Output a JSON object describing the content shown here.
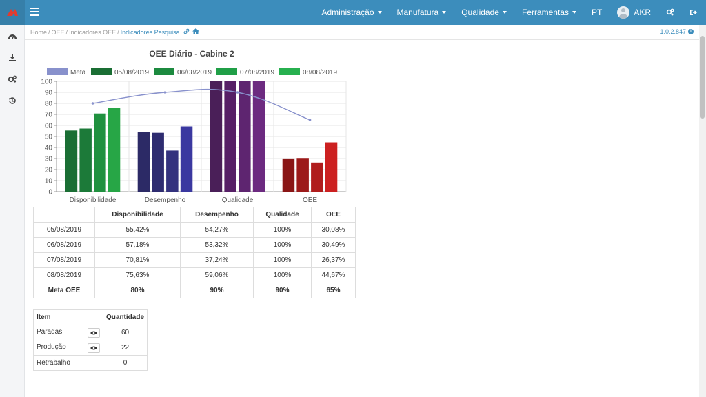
{
  "header": {
    "menu": [
      {
        "label": "Administração",
        "has_caret": true
      },
      {
        "label": "Manufatura",
        "has_caret": true
      },
      {
        "label": "Qualidade",
        "has_caret": true
      },
      {
        "label": "Ferramentas",
        "has_caret": true
      },
      {
        "label": "PT",
        "has_caret": false
      }
    ],
    "user": "AKR"
  },
  "breadcrumb": {
    "home": "Home",
    "oee": "OEE",
    "indicadores": "Indicadores OEE",
    "current": "Indicadores Pesquisa"
  },
  "version": "1.0.2.847",
  "chart_data": {
    "type": "bar",
    "title": "OEE Diário - Cabine 2",
    "categories": [
      "Disponibilidade",
      "Desempenho",
      "Qualidade",
      "OEE"
    ],
    "ylim": [
      0,
      100
    ],
    "yticks": [
      0,
      10,
      20,
      30,
      40,
      50,
      60,
      70,
      80,
      90,
      100
    ],
    "series": [
      {
        "name": "05/08/2019",
        "values": [
          55.42,
          54.27,
          100,
          30.08
        ]
      },
      {
        "name": "06/08/2019",
        "values": [
          57.18,
          53.32,
          100,
          30.49
        ]
      },
      {
        "name": "07/08/2019",
        "values": [
          70.81,
          37.24,
          100,
          26.37
        ]
      },
      {
        "name": "08/08/2019",
        "values": [
          75.63,
          59.06,
          100,
          44.67
        ]
      }
    ],
    "line": {
      "name": "Meta",
      "values": [
        80,
        90,
        90,
        65
      ],
      "color": "#8891cc"
    },
    "legend_colors": [
      "#1a6e34",
      "#1c8a3f",
      "#209f47",
      "#27b04f"
    ],
    "bar_colors": [
      [
        "#1a6e34",
        "#1c7a39",
        "#20913f",
        "#27a646"
      ],
      [
        "#2c2a66",
        "#2e2c70",
        "#34327e",
        "#3a38a0"
      ],
      [
        "#4a1f58",
        "#561f66",
        "#5e2570",
        "#6c2a80"
      ],
      [
        "#8a1616",
        "#9c1a1a",
        "#b01c1c",
        "#cc2020"
      ]
    ],
    "grid": true,
    "legend": "top"
  },
  "oee_table": {
    "headers": [
      "",
      "Disponibilidade",
      "Desempenho",
      "Qualidade",
      "OEE"
    ],
    "rows": [
      [
        "05/08/2019",
        "55,42%",
        "54,27%",
        "100%",
        "30,08%"
      ],
      [
        "06/08/2019",
        "57,18%",
        "53,32%",
        "100%",
        "30,49%"
      ],
      [
        "07/08/2019",
        "70,81%",
        "37,24%",
        "100%",
        "26,37%"
      ],
      [
        "08/08/2019",
        "75,63%",
        "59,06%",
        "100%",
        "44,67%"
      ]
    ],
    "meta_row": [
      "Meta OEE",
      "80%",
      "90%",
      "90%",
      "65%"
    ]
  },
  "item_table": {
    "headers": [
      "Item",
      "Quantidade"
    ],
    "rows": [
      {
        "item": "Paradas",
        "qty": "60",
        "has_view": true
      },
      {
        "item": "Produção",
        "qty": "22",
        "has_view": true
      },
      {
        "item": "Retrabalho",
        "qty": "0",
        "has_view": false
      }
    ]
  },
  "colors": {
    "topbar": "#3c8dbc",
    "accent": "#3c8dbc"
  }
}
